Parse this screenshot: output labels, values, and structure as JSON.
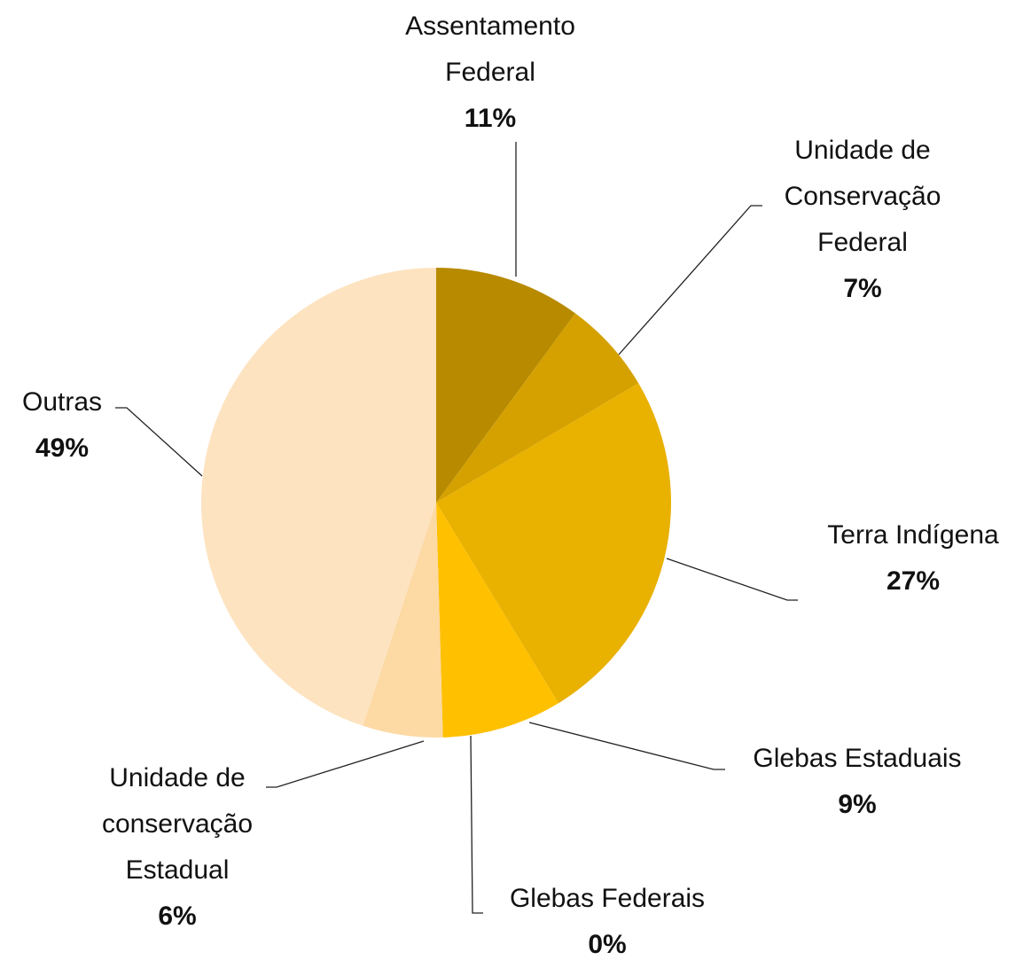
{
  "chart_data": {
    "type": "pie",
    "categories": [
      "Assentamento Federal",
      "Unidade de Conservação Federal",
      "Terra Indígena",
      "Glebas Estaduais",
      "Glebas Federais",
      "Unidade de conservação Estadual",
      "Outras"
    ],
    "values": [
      11,
      7,
      27,
      9,
      0,
      6,
      49
    ],
    "value_labels": [
      "11%",
      "7%",
      "27%",
      "9%",
      "0%",
      "6%",
      "49%"
    ],
    "colors": [
      "#b88a00",
      "#d4a100",
      "#e9b100",
      "#ffc000",
      "#ffd34d",
      "#fdd9a3",
      "#fde3c0"
    ]
  }
}
